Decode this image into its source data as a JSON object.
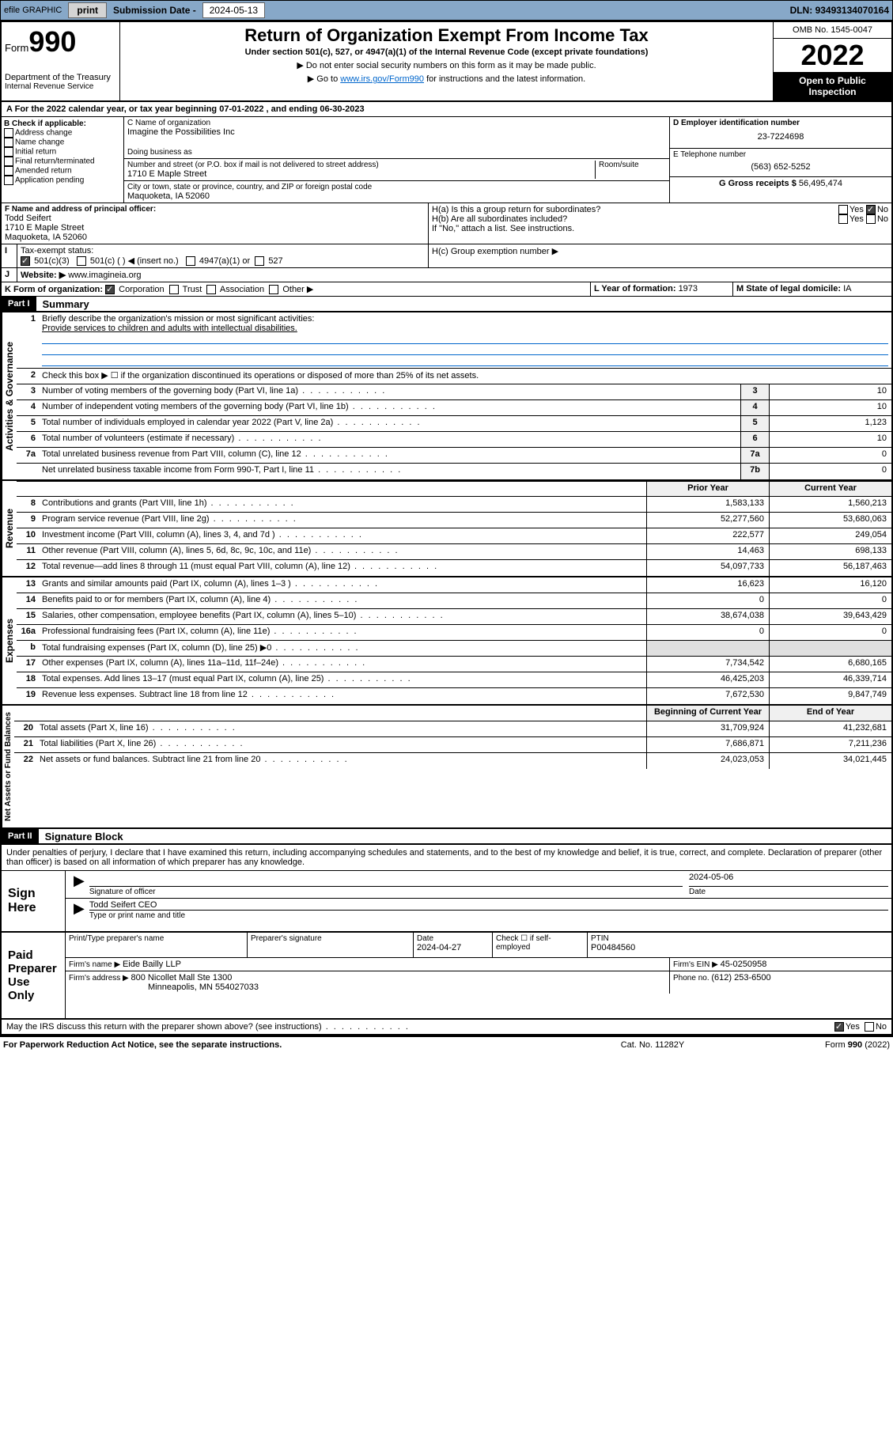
{
  "topbar": {
    "efile_label": "efile GRAPHIC",
    "print_btn": "print",
    "sub_date_label": "Submission Date - ",
    "sub_date": "2024-05-13",
    "dln_label": "DLN: ",
    "dln": "93493134070164"
  },
  "header": {
    "form_label": "Form",
    "form_no": "990",
    "dept": "Department of the Treasury",
    "irs": "Internal Revenue Service",
    "title": "Return of Organization Exempt From Income Tax",
    "subtitle": "Under section 501(c), 527, or 4947(a)(1) of the Internal Revenue Code (except private foundations)",
    "note1": "▶ Do not enter social security numbers on this form as it may be made public.",
    "note2_prefix": "▶ Go to ",
    "note2_link": "www.irs.gov/Form990",
    "note2_suffix": " for instructions and the latest information.",
    "omb": "OMB No. 1545-0047",
    "year": "2022",
    "open_public": "Open to Public Inspection"
  },
  "period": {
    "line_a": "For the 2022 calendar year, or tax year beginning ",
    "begin": "07-01-2022",
    "mid": " , and ending ",
    "end": "06-30-2023"
  },
  "section_b": {
    "label": "B Check if applicable:",
    "opts": [
      "Address change",
      "Name change",
      "Initial return",
      "Final return/terminated",
      "Amended return",
      "Application pending"
    ]
  },
  "section_c": {
    "name_label": "C Name of organization",
    "name": "Imagine the Possibilities Inc",
    "dba_label": "Doing business as",
    "addr_label": "Number and street (or P.O. box if mail is not delivered to street address)",
    "room_label": "Room/suite",
    "addr": "1710 E Maple Street",
    "city_label": "City or town, state or province, country, and ZIP or foreign postal code",
    "city": "Maquoketa, IA  52060"
  },
  "section_d": {
    "ein_label": "D Employer identification number",
    "ein": "23-7224698",
    "tel_label": "E Telephone number",
    "tel": "(563) 652-5252",
    "gross_label": "G Gross receipts $ ",
    "gross": "56,495,474"
  },
  "section_f": {
    "label": "F Name and address of principal officer:",
    "name": "Todd Seifert",
    "addr1": "1710 E Maple Street",
    "addr2": "Maquoketa, IA  52060"
  },
  "section_h": {
    "ha_label": "H(a)  Is this a group return for subordinates?",
    "hb_label": "H(b)  Are all subordinates included?",
    "hb_note": "If \"No,\" attach a list. See instructions.",
    "hc_label": "H(c)  Group exemption number ▶"
  },
  "section_i": {
    "label": "Tax-exempt status:",
    "opt1": "501(c)(3)",
    "opt2": "501(c) (   ) ◀ (insert no.)",
    "opt3": "4947(a)(1) or",
    "opt4": "527"
  },
  "section_j": {
    "label": "Website: ▶",
    "url": "www.imagineia.org"
  },
  "section_k": {
    "label": "K Form of organization:",
    "opts": [
      "Corporation",
      "Trust",
      "Association",
      "Other ▶"
    ]
  },
  "section_l": {
    "label": "L Year of formation: ",
    "val": "1973"
  },
  "section_m": {
    "label": "M State of legal domicile: ",
    "val": "IA"
  },
  "part1": {
    "header": "Part I",
    "title": "Summary",
    "q1": "Briefly describe the organization's mission or most significant activities:",
    "q1_ans": "Provide services to children and adults with intellectual disabilities.",
    "q2": "Check this box ▶ ☐  if the organization discontinued its operations or disposed of more than 25% of its net assets.",
    "gov_label": "Activities & Governance",
    "rev_label": "Revenue",
    "exp_label": "Expenses",
    "net_label": "Net Assets or Fund Balances",
    "col_prior": "Prior Year",
    "col_current": "Current Year",
    "col_begin": "Beginning of Current Year",
    "col_end": "End of Year",
    "rows_gov": [
      {
        "n": "3",
        "d": "Number of voting members of the governing body (Part VI, line 1a)",
        "box": "3",
        "v": "10"
      },
      {
        "n": "4",
        "d": "Number of independent voting members of the governing body (Part VI, line 1b)",
        "box": "4",
        "v": "10"
      },
      {
        "n": "5",
        "d": "Total number of individuals employed in calendar year 2022 (Part V, line 2a)",
        "box": "5",
        "v": "1,123"
      },
      {
        "n": "6",
        "d": "Total number of volunteers (estimate if necessary)",
        "box": "6",
        "v": "10"
      },
      {
        "n": "7a",
        "d": "Total unrelated business revenue from Part VIII, column (C), line 12",
        "box": "7a",
        "v": "0"
      },
      {
        "n": "",
        "d": "Net unrelated business taxable income from Form 990-T, Part I, line 11",
        "box": "7b",
        "v": "0"
      }
    ],
    "rows_rev": [
      {
        "n": "8",
        "d": "Contributions and grants (Part VIII, line 1h)",
        "p": "1,583,133",
        "c": "1,560,213"
      },
      {
        "n": "9",
        "d": "Program service revenue (Part VIII, line 2g)",
        "p": "52,277,560",
        "c": "53,680,063"
      },
      {
        "n": "10",
        "d": "Investment income (Part VIII, column (A), lines 3, 4, and 7d )",
        "p": "222,577",
        "c": "249,054"
      },
      {
        "n": "11",
        "d": "Other revenue (Part VIII, column (A), lines 5, 6d, 8c, 9c, 10c, and 11e)",
        "p": "14,463",
        "c": "698,133"
      },
      {
        "n": "12",
        "d": "Total revenue—add lines 8 through 11 (must equal Part VIII, column (A), line 12)",
        "p": "54,097,733",
        "c": "56,187,463"
      }
    ],
    "rows_exp": [
      {
        "n": "13",
        "d": "Grants and similar amounts paid (Part IX, column (A), lines 1–3 )",
        "p": "16,623",
        "c": "16,120"
      },
      {
        "n": "14",
        "d": "Benefits paid to or for members (Part IX, column (A), line 4)",
        "p": "0",
        "c": "0"
      },
      {
        "n": "15",
        "d": "Salaries, other compensation, employee benefits (Part IX, column (A), lines 5–10)",
        "p": "38,674,038",
        "c": "39,643,429"
      },
      {
        "n": "16a",
        "d": "Professional fundraising fees (Part IX, column (A), line 11e)",
        "p": "0",
        "c": "0"
      },
      {
        "n": "b",
        "d": "Total fundraising expenses (Part IX, column (D), line 25) ▶0",
        "p": "",
        "c": "",
        "shaded": true
      },
      {
        "n": "17",
        "d": "Other expenses (Part IX, column (A), lines 11a–11d, 11f–24e)",
        "p": "7,734,542",
        "c": "6,680,165"
      },
      {
        "n": "18",
        "d": "Total expenses. Add lines 13–17 (must equal Part IX, column (A), line 25)",
        "p": "46,425,203",
        "c": "46,339,714"
      },
      {
        "n": "19",
        "d": "Revenue less expenses. Subtract line 18 from line 12",
        "p": "7,672,530",
        "c": "9,847,749"
      }
    ],
    "rows_net": [
      {
        "n": "20",
        "d": "Total assets (Part X, line 16)",
        "p": "31,709,924",
        "c": "41,232,681"
      },
      {
        "n": "21",
        "d": "Total liabilities (Part X, line 26)",
        "p": "7,686,871",
        "c": "7,211,236"
      },
      {
        "n": "22",
        "d": "Net assets or fund balances. Subtract line 21 from line 20",
        "p": "24,023,053",
        "c": "34,021,445"
      }
    ]
  },
  "part2": {
    "header": "Part II",
    "title": "Signature Block",
    "penalties": "Under penalties of perjury, I declare that I have examined this return, including accompanying schedules and statements, and to the best of my knowledge and belief, it is true, correct, and complete. Declaration of preparer (other than officer) is based on all information of which preparer has any knowledge.",
    "sign_here": "Sign Here",
    "sig_officer": "Signature of officer",
    "sig_date": "2024-05-06",
    "date_label": "Date",
    "officer_name": "Todd Seifert CEO",
    "type_name": "Type or print name and title",
    "paid_prep": "Paid Preparer Use Only",
    "prep_name_label": "Print/Type preparer's name",
    "prep_sig_label": "Preparer's signature",
    "prep_date_label": "Date",
    "prep_date": "2024-04-27",
    "self_emp": "Check ☐ if self-employed",
    "ptin_label": "PTIN",
    "ptin": "P00484560",
    "firm_name_label": "Firm's name    ▶ ",
    "firm_name": "Eide Bailly LLP",
    "firm_ein_label": "Firm's EIN ▶ ",
    "firm_ein": "45-0250958",
    "firm_addr_label": "Firm's address ▶ ",
    "firm_addr1": "800 Nicollet Mall Ste 1300",
    "firm_addr2": "Minneapolis, MN  554027033",
    "phone_label": "Phone no. ",
    "phone": "(612) 253-6500",
    "may_irs": "May the IRS discuss this return with the preparer shown above? (see instructions)"
  },
  "footer": {
    "left": "For Paperwork Reduction Act Notice, see the separate instructions.",
    "mid": "Cat. No. 11282Y",
    "right": "Form 990 (2022)"
  }
}
